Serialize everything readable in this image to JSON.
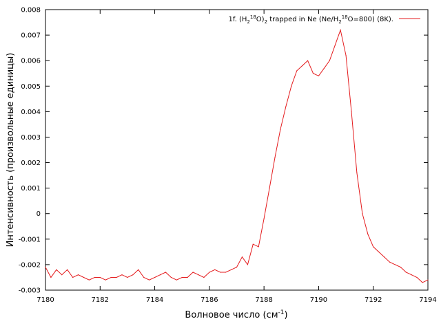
{
  "chart_data": {
    "type": "line",
    "xlabel": "Волновое число (см",
    "xlabel_sup": "-1",
    "xlabel_end": ")",
    "ylabel": "Интенсивность (произвольные единицы)",
    "xlim": [
      7180,
      7194
    ],
    "ylim": [
      -0.003,
      0.008
    ],
    "x_ticks": [
      7180,
      7182,
      7184,
      7186,
      7188,
      7190,
      7192,
      7194
    ],
    "x_tick_labels": [
      "7180",
      "7182",
      "7184",
      "7186",
      "7188",
      "7190",
      "7192",
      "7194"
    ],
    "y_ticks": [
      -0.003,
      -0.002,
      -0.001,
      0,
      0.001,
      0.002,
      0.003,
      0.004,
      0.005,
      0.006,
      0.007,
      0.008
    ],
    "y_tick_labels": [
      "-0.003",
      "-0.002",
      "-0.001",
      "0",
      "0.001",
      "0.002",
      "0.003",
      "0.004",
      "0.005",
      "0.006",
      "0.007",
      "0.008"
    ],
    "grid": false,
    "legend_position": "top-right",
    "series": [
      {
        "name_parts": [
          "1f. (H",
          "2",
          "18",
          "O)",
          "2",
          " trapped in Ne (Ne/H",
          "2",
          "18",
          "O=800) (8K)."
        ],
        "color": "#e41a1c",
        "x": [
          7180.0,
          7180.2,
          7180.4,
          7180.6,
          7180.8,
          7181.0,
          7181.2,
          7181.4,
          7181.6,
          7181.8,
          7182.0,
          7182.2,
          7182.4,
          7182.6,
          7182.8,
          7183.0,
          7183.2,
          7183.4,
          7183.6,
          7183.8,
          7184.0,
          7184.2,
          7184.4,
          7184.6,
          7184.8,
          7185.0,
          7185.2,
          7185.4,
          7185.6,
          7185.8,
          7186.0,
          7186.2,
          7186.4,
          7186.6,
          7186.8,
          7187.0,
          7187.2,
          7187.4,
          7187.6,
          7187.8,
          7188.0,
          7188.2,
          7188.4,
          7188.6,
          7188.8,
          7189.0,
          7189.2,
          7189.4,
          7189.6,
          7189.8,
          7190.0,
          7190.2,
          7190.4,
          7190.6,
          7190.8,
          7191.0,
          7191.2,
          7191.4,
          7191.6,
          7191.8,
          7192.0,
          7192.2,
          7192.4,
          7192.6,
          7192.8,
          7193.0,
          7193.2,
          7193.4,
          7193.6,
          7193.8,
          7194.0
        ],
        "y": [
          -0.0021,
          -0.0025,
          -0.0022,
          -0.0024,
          -0.0022,
          -0.0025,
          -0.0024,
          -0.0025,
          -0.0026,
          -0.0025,
          -0.0025,
          -0.0026,
          -0.0025,
          -0.0025,
          -0.0024,
          -0.0025,
          -0.0024,
          -0.0022,
          -0.0025,
          -0.0026,
          -0.0025,
          -0.0024,
          -0.0023,
          -0.0025,
          -0.0026,
          -0.0025,
          -0.0025,
          -0.0023,
          -0.0024,
          -0.0025,
          -0.0023,
          -0.0022,
          -0.0023,
          -0.0023,
          -0.0022,
          -0.0021,
          -0.0017,
          -0.002,
          -0.0012,
          -0.0013,
          -0.0002,
          0.001,
          0.0022,
          0.0033,
          0.0042,
          0.005,
          0.0056,
          0.0058,
          0.006,
          0.0055,
          0.0054,
          0.0057,
          0.006,
          0.0066,
          0.0072,
          0.0062,
          0.004,
          0.0016,
          0.0,
          -0.0008,
          -0.0013,
          -0.0015,
          -0.0017,
          -0.0019,
          -0.002,
          -0.0021,
          -0.0023,
          -0.0024,
          -0.0025,
          -0.0027,
          -0.0026
        ]
      }
    ]
  }
}
